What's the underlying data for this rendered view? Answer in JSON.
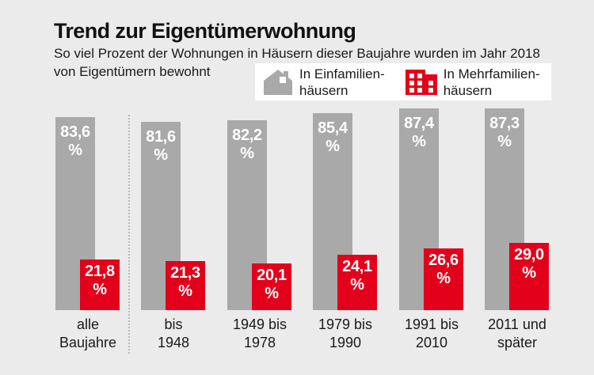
{
  "header": {
    "title": "Trend zur Eigentümerwohnung",
    "subtitle_line1": "So viel Prozent der Wohnungen in Häusern dieser Baujahre wurden im Jahr 2018",
    "subtitle_line2": "von Eigentümern bewohnt"
  },
  "legend": {
    "single_family": {
      "line1": "In Einfamilien-",
      "line2": "häusern"
    },
    "multi_family": {
      "line1": "In Mehrfamilien-",
      "line2": "häusern"
    }
  },
  "chart_data": {
    "type": "bar",
    "title": "Trend zur Eigentümerwohnung",
    "subtitle": "So viel Prozent der Wohnungen in Häusern dieser Baujahre wurden im Jahr 2018 von Eigentümern bewohnt",
    "unit": "%",
    "categories": [
      "alle Baujahre",
      "bis 1948",
      "1949 bis 1978",
      "1979 bis 1990",
      "1991 bis 2010",
      "2011 und später"
    ],
    "category_lines": [
      [
        "alle",
        "Baujahre"
      ],
      [
        "bis",
        "1948"
      ],
      [
        "1949 bis",
        "1978"
      ],
      [
        "1979 bis",
        "1990"
      ],
      [
        "1991 bis",
        "2010"
      ],
      [
        "2011 und",
        "später"
      ]
    ],
    "series": [
      {
        "name": "In Einfamilienhäusern",
        "color": "#a9a9a9",
        "values": [
          83.6,
          81.6,
          82.2,
          85.4,
          87.4,
          87.3
        ],
        "value_labels": [
          "83,6",
          "81,6",
          "82,2",
          "85,4",
          "87,4",
          "87,3"
        ]
      },
      {
        "name": "In Mehrfamilienhäusern",
        "color": "#e2001b",
        "values": [
          21.8,
          21.3,
          20.1,
          24.1,
          26.6,
          29.0
        ],
        "value_labels": [
          "21,8",
          "21,3",
          "20,1",
          "24,1",
          "26,6",
          "29,0"
        ]
      }
    ],
    "ylim": [
      0,
      100
    ],
    "grid": false,
    "legend_position": "top"
  },
  "colors": {
    "background": "#ebebeb",
    "single_family_bar": "#a9a9a9",
    "multi_family_bar": "#e2001b",
    "text": "#1a1a1a",
    "bar_value_text": "#ffffff",
    "legend_background": "#ffffff"
  }
}
